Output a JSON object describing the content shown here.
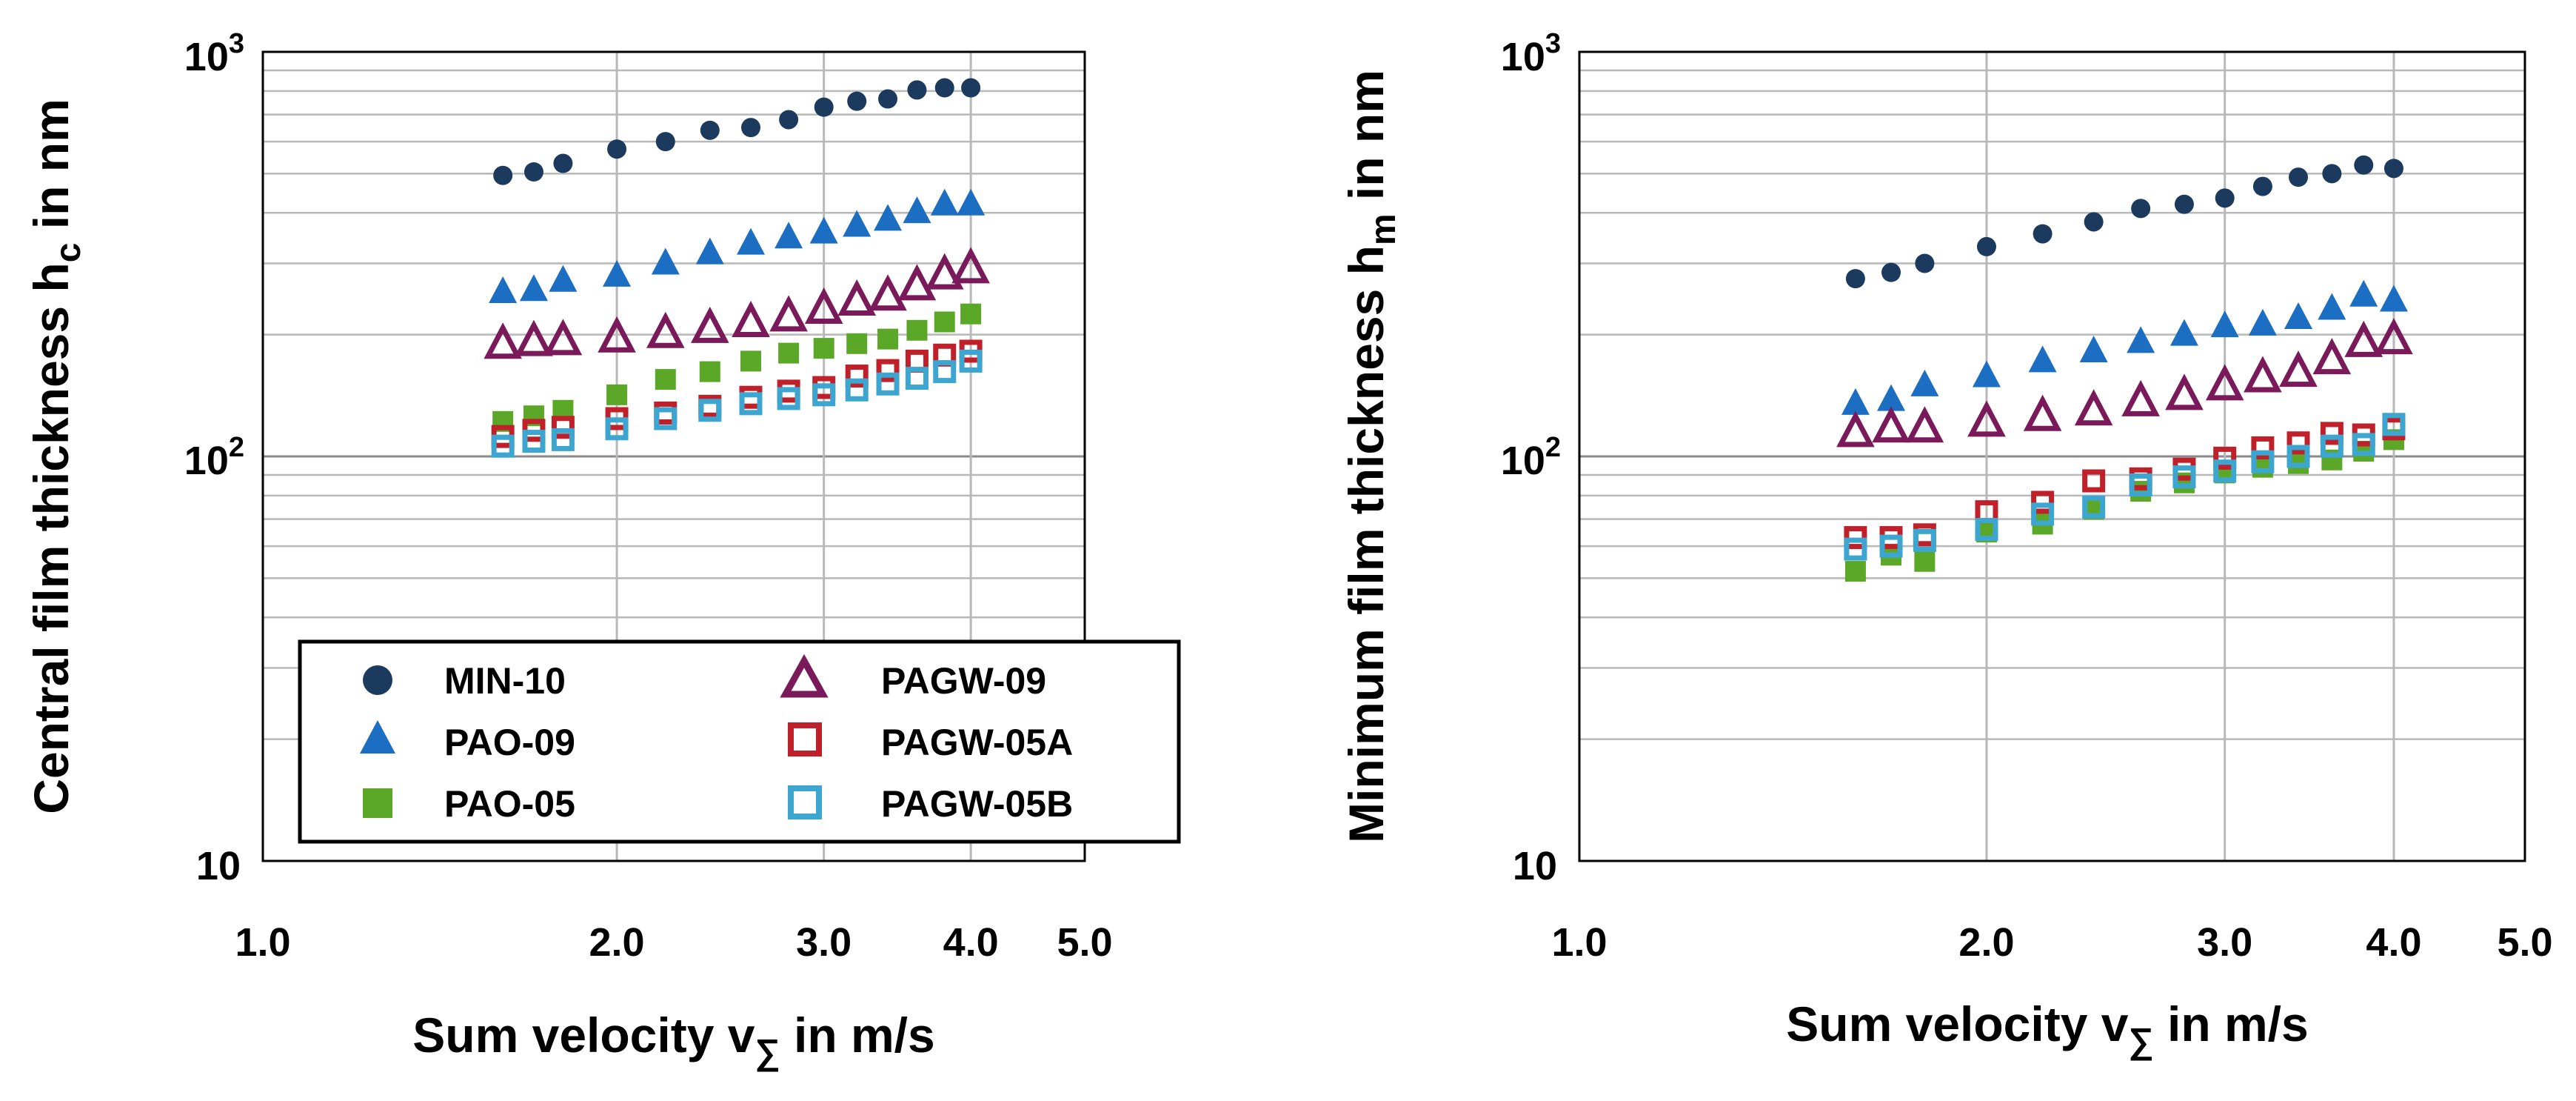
{
  "chart_data": [
    {
      "type": "scatter",
      "panel": "left",
      "xscale": "log",
      "yscale": "log",
      "xlim": [
        1.0,
        5.0
      ],
      "ylim": [
        10,
        1000
      ],
      "xticks": [
        "1.0",
        "2.0",
        "3.0",
        "4.0",
        "5.0"
      ],
      "yticks": {
        "base_10": "10",
        "base_100": "10",
        "exp_100": "2",
        "base_1000": "10",
        "exp_1000": "3"
      },
      "ylabel_main": "Central film thickness h",
      "ylabel_sub": "c",
      "ylabel_tail": " in nm",
      "xlabel_main": "Sum velocity v",
      "xlabel_sub": "∑",
      "xlabel_tail": " in m/s",
      "grid": true,
      "x": [
        1.6,
        1.7,
        1.8,
        2.0,
        2.2,
        2.4,
        2.6,
        2.8,
        3.0,
        3.2,
        3.4,
        3.6,
        3.8,
        4.0
      ],
      "series": [
        {
          "name": "MIN-10",
          "marker": "circle",
          "color": "#1b3a5e",
          "values": [
            495,
            505,
            530,
            575,
            600,
            640,
            650,
            680,
            730,
            755,
            765,
            805,
            815,
            815
          ]
        },
        {
          "name": "PAO-09",
          "marker": "triangle",
          "color": "#1b6ec2",
          "values": [
            255,
            258,
            272,
            280,
            300,
            318,
            336,
            348,
            358,
            372,
            385,
            402,
            420,
            420
          ]
        },
        {
          "name": "PAO-05",
          "marker": "square",
          "color": "#5ba829",
          "values": [
            122,
            126,
            130,
            142,
            155,
            162,
            172,
            180,
            185,
            190,
            195,
            205,
            215,
            225
          ]
        },
        {
          "name": "PAGW-09",
          "marker": "open-triangle",
          "color": "#7a1a5a",
          "values": [
            190,
            193,
            194,
            197,
            202,
            208,
            215,
            222,
            232,
            243,
            250,
            265,
            282,
            292
          ]
        },
        {
          "name": "PAGW-05A",
          "marker": "open-square",
          "color": "#c0202a",
          "values": [
            112,
            116,
            118,
            124,
            128,
            133,
            140,
            145,
            148,
            158,
            163,
            172,
            178,
            182
          ]
        },
        {
          "name": "PAGW-05B",
          "marker": "open-square",
          "color": "#3ca6d0",
          "values": [
            106,
            109,
            110,
            117,
            124,
            130,
            135,
            139,
            142,
            146,
            151,
            156,
            162,
            172
          ]
        }
      ],
      "legend": {
        "position": "bottom-left",
        "columns": 2
      }
    },
    {
      "type": "scatter",
      "panel": "right",
      "xscale": "log",
      "yscale": "log",
      "xlim": [
        1.0,
        5.0
      ],
      "ylim": [
        10,
        1000
      ],
      "xticks": [
        "1.0",
        "2.0",
        "3.0",
        "4.0",
        "5.0"
      ],
      "yticks": {
        "base_10": "10",
        "base_100": "10",
        "exp_100": "2",
        "base_1000": "10",
        "exp_1000": "3"
      },
      "ylabel_main": "Minimum film thickness h",
      "ylabel_sub": "m",
      "ylabel_tail": " in nm",
      "xlabel_main": "Sum velocity v",
      "xlabel_sub": "∑",
      "xlabel_tail": " in m/s",
      "grid": true,
      "x": [
        1.6,
        1.7,
        1.8,
        2.0,
        2.2,
        2.4,
        2.6,
        2.8,
        3.0,
        3.2,
        3.4,
        3.6,
        3.8,
        4.0
      ],
      "series": [
        {
          "name": "MIN-10",
          "marker": "circle",
          "color": "#1b3a5e",
          "values": [
            275,
            285,
            300,
            330,
            355,
            380,
            410,
            420,
            435,
            465,
            490,
            500,
            525,
            515
          ]
        },
        {
          "name": "PAO-09",
          "marker": "triangle",
          "color": "#1b6ec2",
          "values": [
            135,
            138,
            150,
            158,
            172,
            182,
            192,
            200,
            210,
            212,
            220,
            232,
            250,
            243
          ]
        },
        {
          "name": "PAO-05",
          "marker": "square",
          "color": "#5ba829",
          "values": [
            52,
            57,
            55,
            65,
            68,
            74,
            82,
            86,
            91,
            94,
            96,
            98,
            103,
            110
          ]
        },
        {
          "name": "PAGW-09",
          "marker": "open-triangle",
          "color": "#7a1a5a",
          "values": [
            115,
            118,
            118,
            122,
            126,
            130,
            137,
            142,
            150,
            157,
            162,
            174,
            192,
            195
          ]
        },
        {
          "name": "PAGW-05A",
          "marker": "open-square",
          "color": "#c0202a",
          "values": [
            63,
            63,
            64,
            73,
            77,
            87,
            88,
            93,
            99,
            105,
            108,
            114,
            113,
            117
          ]
        },
        {
          "name": "PAGW-05B",
          "marker": "open-square",
          "color": "#3ca6d0",
          "values": [
            59,
            60,
            62,
            66,
            72,
            75,
            85,
            89,
            92,
            97,
            100,
            106,
            107,
            120
          ]
        }
      ]
    }
  ]
}
